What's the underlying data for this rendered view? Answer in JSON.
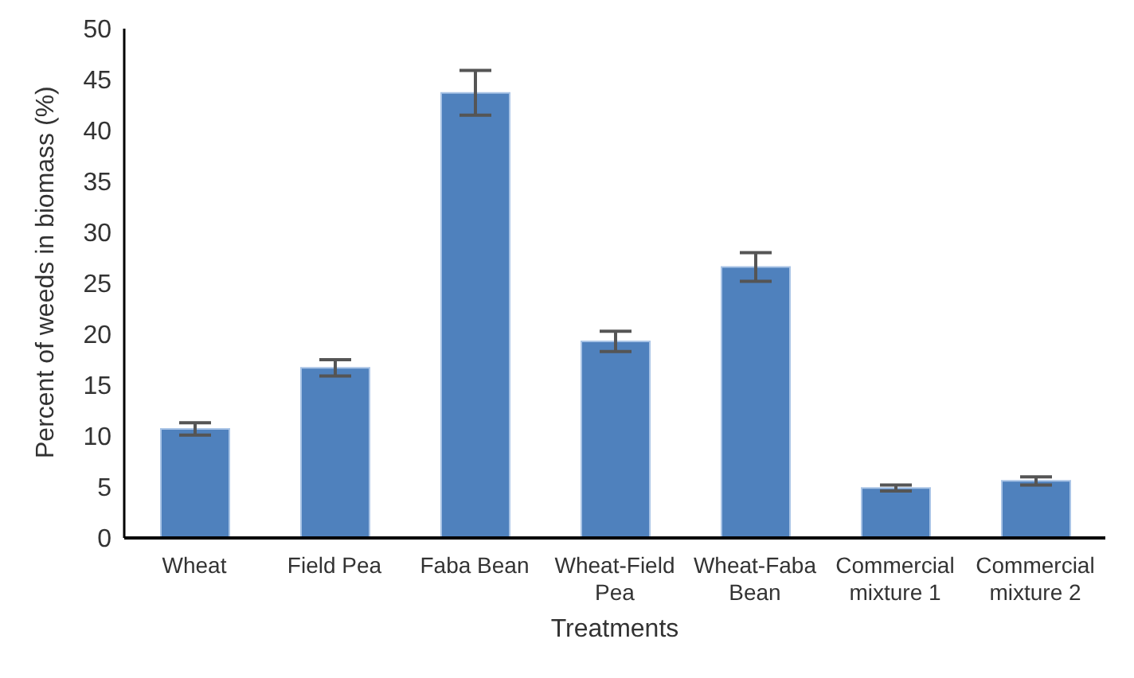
{
  "chart_data": {
    "type": "bar",
    "xlabel": "Treatments",
    "ylabel": "Percent of weeds in biomass (%)",
    "categories": [
      "Wheat",
      "Field Pea",
      "Faba Bean",
      "Wheat-Field Pea",
      "Wheat-Faba Bean",
      "Commercial mixture 1",
      "Commercial mixture 2"
    ],
    "values": [
      10.7,
      16.7,
      43.7,
      19.3,
      26.6,
      4.9,
      5.6
    ],
    "errors": [
      0.6,
      0.8,
      2.2,
      1.0,
      1.4,
      0.3,
      0.4
    ],
    "color": "#4f81bd",
    "ylim": [
      0,
      50
    ],
    "yticks": [
      0,
      5,
      10,
      15,
      20,
      25,
      30,
      35,
      40,
      45,
      50
    ],
    "grid": false,
    "legend": false
  }
}
